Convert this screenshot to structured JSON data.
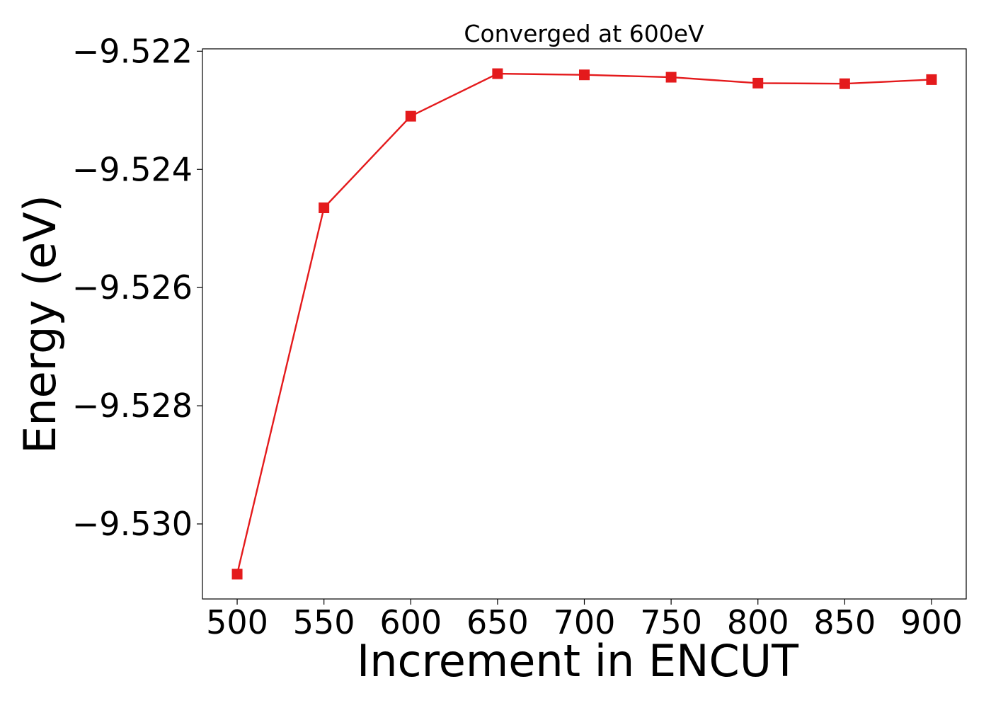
{
  "chart_data": {
    "type": "line",
    "title": "Converged at 600eV",
    "xlabel": "Increment in ENCUT",
    "ylabel": "Energy (eV)",
    "x": [
      500,
      550,
      600,
      650,
      700,
      750,
      800,
      850,
      900
    ],
    "series": [
      {
        "values": [
          -9.53085,
          -9.52465,
          -9.5231,
          -9.52238,
          -9.5224,
          -9.52244,
          -9.52254,
          -9.52255,
          -9.52248
        ],
        "color": "#e41a1c",
        "marker": "square"
      }
    ],
    "xticks": [
      500,
      550,
      600,
      650,
      700,
      750,
      800,
      850,
      900
    ],
    "xtick_labels": [
      "500",
      "550",
      "600",
      "650",
      "700",
      "750",
      "800",
      "850",
      "900"
    ],
    "yticks": [
      -9.522,
      -9.524,
      -9.526,
      -9.528,
      -9.53
    ],
    "ytick_labels": [
      "−9.522",
      "−9.524",
      "−9.526",
      "−9.528",
      "−9.530"
    ],
    "xlim": [
      480,
      920
    ],
    "ylim": [
      -9.53127,
      -9.52196
    ],
    "grid": false,
    "legend": false
  }
}
